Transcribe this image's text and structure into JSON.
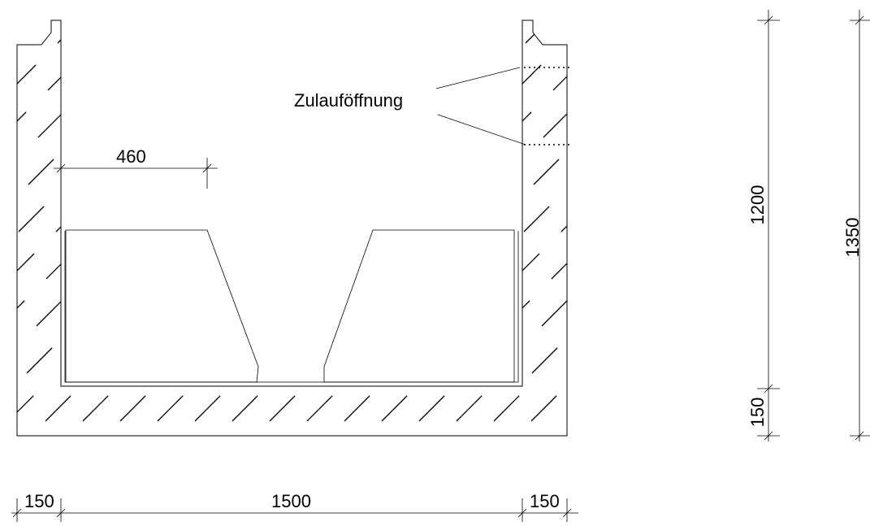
{
  "labels": {
    "inlet_opening": "Zulauföffnung",
    "inner_dim_460": "460"
  },
  "dimensions": {
    "bottom": {
      "wall_left": "150",
      "inner_width": "1500",
      "wall_right": "150"
    },
    "vertical_inner": {
      "inner_height": "1200",
      "base_thickness": "150"
    },
    "vertical_total": {
      "total_height": "1350"
    }
  },
  "colors": {
    "line": "#000000",
    "background": "#ffffff"
  }
}
